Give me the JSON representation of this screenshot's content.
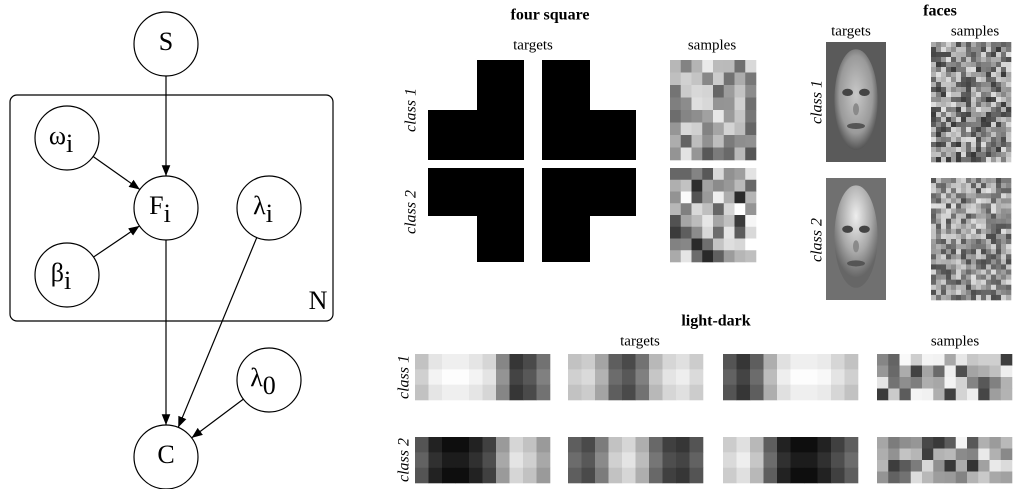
{
  "graph": {
    "nodes": [
      {
        "label": "S"
      },
      {
        "label": "ω",
        "sub": "i"
      },
      {
        "label": "F",
        "sub": "i"
      },
      {
        "label": "λ",
        "sub": "i"
      },
      {
        "label": "β",
        "sub": "i"
      },
      {
        "label": "λ",
        "sub": "0"
      },
      {
        "label": "C"
      }
    ],
    "plate": "N"
  },
  "panels": {
    "four_square": {
      "title": "four square",
      "targets": "targets",
      "samples": "samples",
      "rows": [
        "class 1",
        "class 2"
      ]
    },
    "faces": {
      "title": "faces",
      "targets": "targets",
      "samples": "samples",
      "rows": [
        "class 1",
        "class 2"
      ]
    },
    "light_dark": {
      "title": "light-dark",
      "targets": "targets",
      "samples": "samples",
      "rows": [
        "class 1",
        "class 2"
      ]
    }
  }
}
